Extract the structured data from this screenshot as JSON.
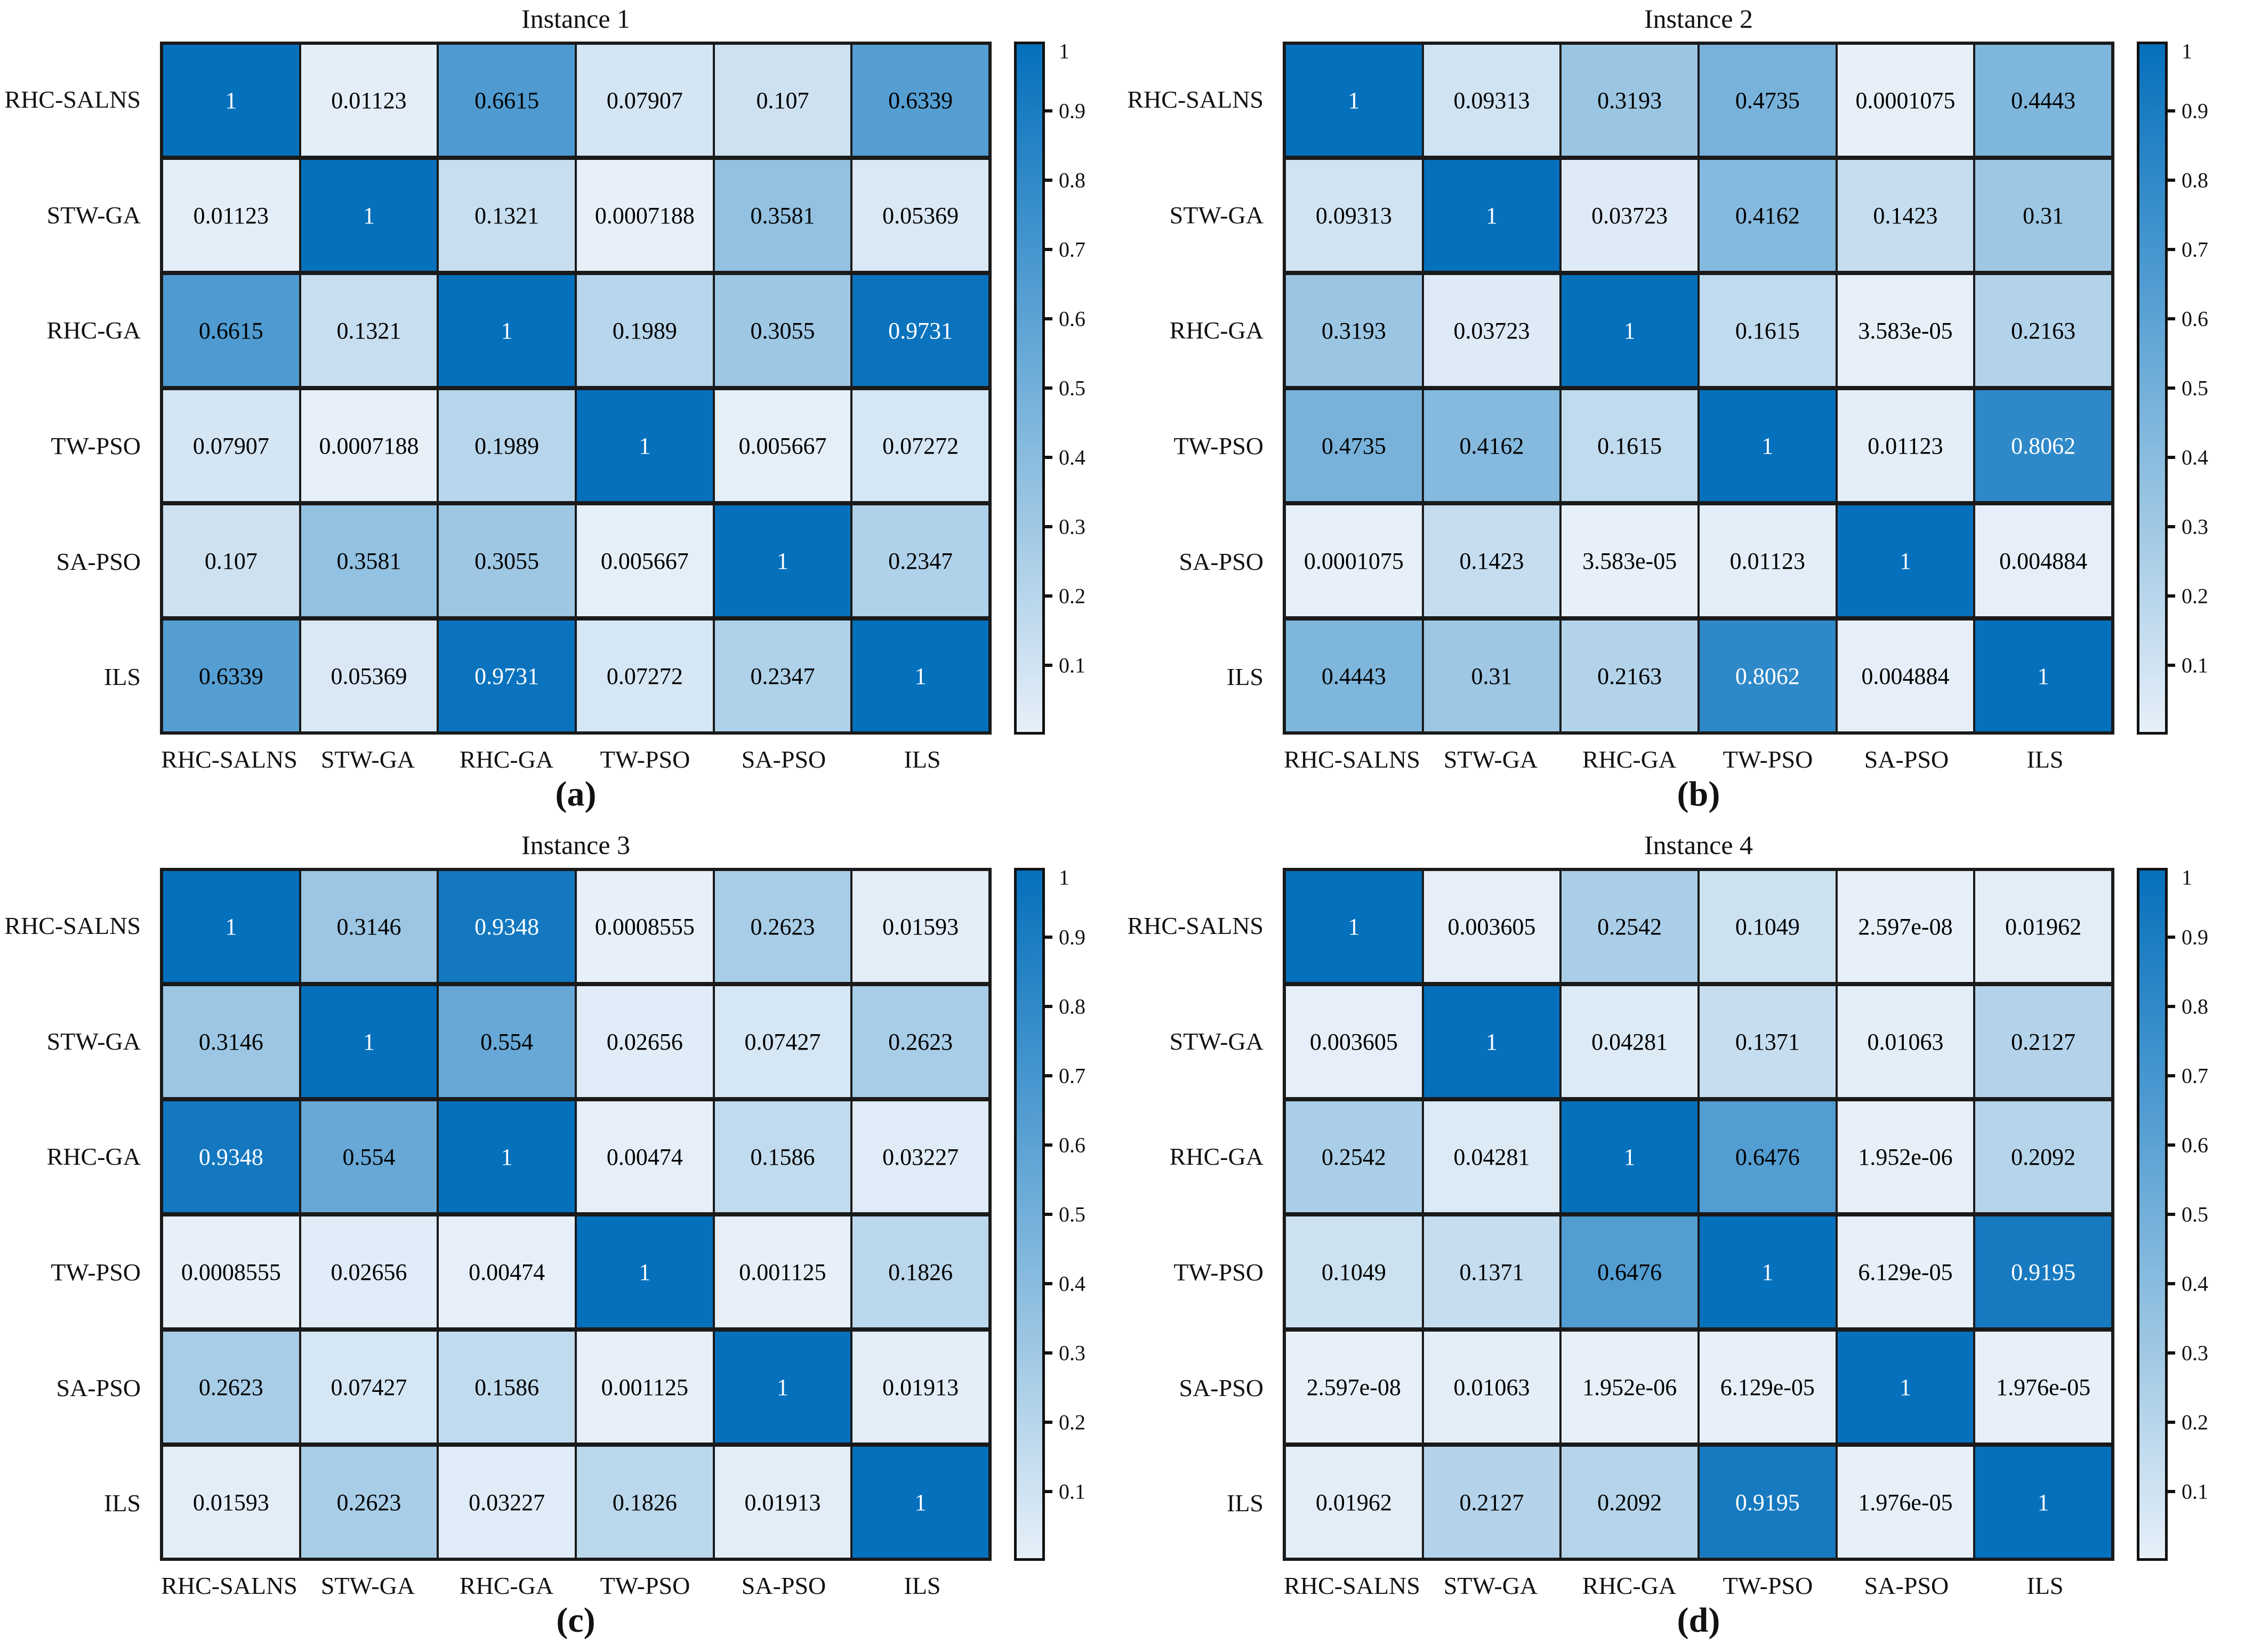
{
  "algorithms": [
    "RHC-SALNS",
    "STW-GA",
    "RHC-GA",
    "TW-PSO",
    "SA-PSO",
    "ILS"
  ],
  "colors": {
    "grid_line": "#1a1a1a",
    "cell_text_dark": "#000000",
    "cell_text_light": "#ffffff",
    "white_text_threshold": 0.75,
    "cmap_anchors": [
      [
        0.0,
        "#e7f0f9"
      ],
      [
        0.01,
        "#e4eef8"
      ],
      [
        0.3,
        "#9fc8e4"
      ],
      [
        0.66,
        "#4f9bd1"
      ],
      [
        1.0,
        "#0570bc"
      ]
    ]
  },
  "colorbar": {
    "min": 0,
    "max": 1,
    "tick_values": [
      1,
      0.9,
      0.8,
      0.7,
      0.6,
      0.5,
      0.4,
      0.3,
      0.2,
      0.1
    ],
    "tick_labels": [
      "1",
      "0.9",
      "0.8",
      "0.7",
      "0.6",
      "0.5",
      "0.4",
      "0.3",
      "0.2",
      "0.1"
    ]
  },
  "panels": [
    {
      "id": "a",
      "title": "Instance 1",
      "caption": "(a)",
      "matrix": [
        [
          "1",
          "0.01123",
          "0.6615",
          "0.07907",
          "0.107",
          "0.6339"
        ],
        [
          "0.01123",
          "1",
          "0.1321",
          "0.0007188",
          "0.3581",
          "0.05369"
        ],
        [
          "0.6615",
          "0.1321",
          "1",
          "0.1989",
          "0.3055",
          "0.9731"
        ],
        [
          "0.07907",
          "0.0007188",
          "0.1989",
          "1",
          "0.005667",
          "0.07272"
        ],
        [
          "0.107",
          "0.3581",
          "0.3055",
          "0.005667",
          "1",
          "0.2347"
        ],
        [
          "0.6339",
          "0.05369",
          "0.9731",
          "0.07272",
          "0.2347",
          "1"
        ]
      ]
    },
    {
      "id": "b",
      "title": "Instance 2",
      "caption": "(b)",
      "matrix": [
        [
          "1",
          "0.09313",
          "0.3193",
          "0.4735",
          "0.0001075",
          "0.4443"
        ],
        [
          "0.09313",
          "1",
          "0.03723",
          "0.4162",
          "0.1423",
          "0.31"
        ],
        [
          "0.3193",
          "0.03723",
          "1",
          "0.1615",
          "3.583e-05",
          "0.2163"
        ],
        [
          "0.4735",
          "0.4162",
          "0.1615",
          "1",
          "0.01123",
          "0.8062"
        ],
        [
          "0.0001075",
          "0.1423",
          "3.583e-05",
          "0.01123",
          "1",
          "0.004884"
        ],
        [
          "0.4443",
          "0.31",
          "0.2163",
          "0.8062",
          "0.004884",
          "1"
        ]
      ]
    },
    {
      "id": "c",
      "title": "Instance 3",
      "caption": "(c)",
      "matrix": [
        [
          "1",
          "0.3146",
          "0.9348",
          "0.0008555",
          "0.2623",
          "0.01593"
        ],
        [
          "0.3146",
          "1",
          "0.554",
          "0.02656",
          "0.07427",
          "0.2623"
        ],
        [
          "0.9348",
          "0.554",
          "1",
          "0.00474",
          "0.1586",
          "0.03227"
        ],
        [
          "0.0008555",
          "0.02656",
          "0.00474",
          "1",
          "0.001125",
          "0.1826"
        ],
        [
          "0.2623",
          "0.07427",
          "0.1586",
          "0.001125",
          "1",
          "0.01913"
        ],
        [
          "0.01593",
          "0.2623",
          "0.03227",
          "0.1826",
          "0.01913",
          "1"
        ]
      ]
    },
    {
      "id": "d",
      "title": "Instance 4",
      "caption": "(d)",
      "matrix": [
        [
          "1",
          "0.003605",
          "0.2542",
          "0.1049",
          "2.597e-08",
          "0.01962"
        ],
        [
          "0.003605",
          "1",
          "0.04281",
          "0.1371",
          "0.01063",
          "0.2127"
        ],
        [
          "0.2542",
          "0.04281",
          "1",
          "0.6476",
          "1.952e-06",
          "0.2092"
        ],
        [
          "0.1049",
          "0.1371",
          "0.6476",
          "1",
          "6.129e-05",
          "0.9195"
        ],
        [
          "2.597e-08",
          "0.01063",
          "1.952e-06",
          "6.129e-05",
          "1",
          "1.976e-05"
        ],
        [
          "0.01962",
          "0.2127",
          "0.2092",
          "0.9195",
          "1.976e-05",
          "1"
        ]
      ]
    }
  ],
  "chart_data": [
    {
      "type": "heatmap",
      "title": "Instance 1",
      "caption": "(a)",
      "x_categories": [
        "RHC-SALNS",
        "STW-GA",
        "RHC-GA",
        "TW-PSO",
        "SA-PSO",
        "ILS"
      ],
      "y_categories": [
        "RHC-SALNS",
        "STW-GA",
        "RHC-GA",
        "TW-PSO",
        "SA-PSO",
        "ILS"
      ],
      "values": [
        [
          1,
          0.01123,
          0.6615,
          0.07907,
          0.107,
          0.6339
        ],
        [
          0.01123,
          1,
          0.1321,
          0.0007188,
          0.3581,
          0.05369
        ],
        [
          0.6615,
          0.1321,
          1,
          0.1989,
          0.3055,
          0.9731
        ],
        [
          0.07907,
          0.0007188,
          0.1989,
          1,
          0.005667,
          0.07272
        ],
        [
          0.107,
          0.3581,
          0.3055,
          0.005667,
          1,
          0.2347
        ],
        [
          0.6339,
          0.05369,
          0.9731,
          0.07272,
          0.2347,
          1
        ]
      ],
      "colorbar_range": [
        0,
        1
      ],
      "colorbar_ticks": [
        1,
        0.9,
        0.8,
        0.7,
        0.6,
        0.5,
        0.4,
        0.3,
        0.2,
        0.1
      ],
      "colormap": "Blues",
      "legend_position": "right"
    },
    {
      "type": "heatmap",
      "title": "Instance 2",
      "caption": "(b)",
      "x_categories": [
        "RHC-SALNS",
        "STW-GA",
        "RHC-GA",
        "TW-PSO",
        "SA-PSO",
        "ILS"
      ],
      "y_categories": [
        "RHC-SALNS",
        "STW-GA",
        "RHC-GA",
        "TW-PSO",
        "SA-PSO",
        "ILS"
      ],
      "values": [
        [
          1,
          0.09313,
          0.3193,
          0.4735,
          0.0001075,
          0.4443
        ],
        [
          0.09313,
          1,
          0.03723,
          0.4162,
          0.1423,
          0.31
        ],
        [
          0.3193,
          0.03723,
          1,
          0.1615,
          3.583e-05,
          0.2163
        ],
        [
          0.4735,
          0.4162,
          0.1615,
          1,
          0.01123,
          0.8062
        ],
        [
          0.0001075,
          0.1423,
          3.583e-05,
          0.01123,
          1,
          0.004884
        ],
        [
          0.4443,
          0.31,
          0.2163,
          0.8062,
          0.004884,
          1
        ]
      ],
      "colorbar_range": [
        0,
        1
      ],
      "colorbar_ticks": [
        1,
        0.9,
        0.8,
        0.7,
        0.6,
        0.5,
        0.4,
        0.3,
        0.2,
        0.1
      ],
      "colormap": "Blues",
      "legend_position": "right"
    },
    {
      "type": "heatmap",
      "title": "Instance 3",
      "caption": "(c)",
      "x_categories": [
        "RHC-SALNS",
        "STW-GA",
        "RHC-GA",
        "TW-PSO",
        "SA-PSO",
        "ILS"
      ],
      "y_categories": [
        "RHC-SALNS",
        "STW-GA",
        "RHC-GA",
        "TW-PSO",
        "SA-PSO",
        "ILS"
      ],
      "values": [
        [
          1,
          0.3146,
          0.9348,
          0.0008555,
          0.2623,
          0.01593
        ],
        [
          0.3146,
          1,
          0.554,
          0.02656,
          0.07427,
          0.2623
        ],
        [
          0.9348,
          0.554,
          1,
          0.00474,
          0.1586,
          0.03227
        ],
        [
          0.0008555,
          0.02656,
          0.00474,
          1,
          0.001125,
          0.1826
        ],
        [
          0.2623,
          0.07427,
          0.1586,
          0.001125,
          1,
          0.01913
        ],
        [
          0.01593,
          0.2623,
          0.03227,
          0.1826,
          0.01913,
          1
        ]
      ],
      "colorbar_range": [
        0,
        1
      ],
      "colorbar_ticks": [
        1,
        0.9,
        0.8,
        0.7,
        0.6,
        0.5,
        0.4,
        0.3,
        0.2,
        0.1
      ],
      "colormap": "Blues",
      "legend_position": "right"
    },
    {
      "type": "heatmap",
      "title": "Instance 4",
      "caption": "(d)",
      "x_categories": [
        "RHC-SALNS",
        "STW-GA",
        "RHC-GA",
        "TW-PSO",
        "SA-PSO",
        "ILS"
      ],
      "y_categories": [
        "RHC-SALNS",
        "STW-GA",
        "RHC-GA",
        "TW-PSO",
        "SA-PSO",
        "ILS"
      ],
      "values": [
        [
          1,
          0.003605,
          0.2542,
          0.1049,
          2.597e-08,
          0.01962
        ],
        [
          0.003605,
          1,
          0.04281,
          0.1371,
          0.01063,
          0.2127
        ],
        [
          0.2542,
          0.04281,
          1,
          0.6476,
          1.952e-06,
          0.2092
        ],
        [
          0.1049,
          0.1371,
          0.6476,
          1,
          6.129e-05,
          0.9195
        ],
        [
          2.597e-08,
          0.01063,
          1.952e-06,
          6.129e-05,
          1,
          1.976e-05
        ],
        [
          0.01962,
          0.2127,
          0.2092,
          0.9195,
          1.976e-05,
          1
        ]
      ],
      "colorbar_range": [
        0,
        1
      ],
      "colorbar_ticks": [
        1,
        0.9,
        0.8,
        0.7,
        0.6,
        0.5,
        0.4,
        0.3,
        0.2,
        0.1
      ],
      "colormap": "Blues",
      "legend_position": "right"
    }
  ]
}
